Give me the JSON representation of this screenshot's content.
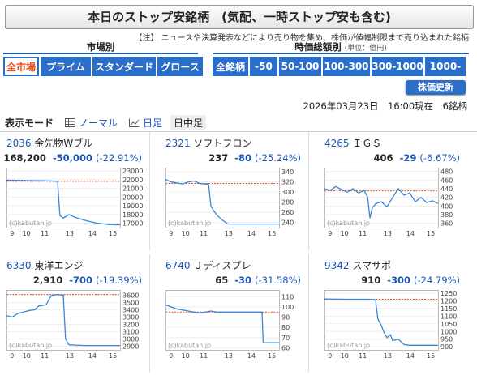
{
  "title": "本日のストップ安銘柄　(気配、一時ストップ安も含む)",
  "note_label": "【注】",
  "note_text": "ニュースや決算発表などにより売り物を集め、株価が値幅制限まで売り込まれた銘柄",
  "market_section": {
    "label": "市場別",
    "tabs": [
      {
        "label": "全市場",
        "active": true
      },
      {
        "label": "プライム",
        "active": false
      },
      {
        "label": "スタンダード",
        "active": false
      },
      {
        "label": "グロース",
        "active": false
      }
    ]
  },
  "price_section": {
    "label": "時価総額別",
    "unit": "(単位：億円)",
    "tabs": [
      {
        "label": "全銘柄"
      },
      {
        "label": "-50"
      },
      {
        "label": "50-100"
      },
      {
        "label": "100-300"
      },
      {
        "label": "300-1000"
      },
      {
        "label": "1000-"
      }
    ]
  },
  "refresh_label": "株価更新",
  "timestamp": "2026年03月23日　16:00現在　6銘柄",
  "mode_bar": {
    "label": "表示モード",
    "modes": [
      {
        "label": "ノーマル",
        "icon": "table-icon",
        "selected": false
      },
      {
        "label": "日足",
        "icon": "line-chart-icon",
        "selected": false
      },
      {
        "label": "日中足",
        "icon": "",
        "selected": true
      }
    ]
  },
  "stocks": [
    {
      "code": "2036",
      "name": "金先物Wブル",
      "price": "168,200",
      "change": "-50,000",
      "pct": "(-22.91%)",
      "yticks": [
        "230000",
        "220000",
        "210000",
        "200000",
        "190000",
        "180000",
        "170000"
      ],
      "ymin": 165000,
      "ymax": 232000,
      "ref": 218200,
      "pts": [
        [
          0,
          219500
        ],
        [
          0.1,
          219300
        ],
        [
          0.2,
          219000
        ],
        [
          0.3,
          218900
        ],
        [
          0.4,
          218500
        ],
        [
          0.45,
          218000
        ],
        [
          0.47,
          179000
        ],
        [
          0.5,
          176000
        ],
        [
          0.55,
          180000
        ],
        [
          0.6,
          177000
        ],
        [
          0.7,
          173000
        ],
        [
          0.8,
          170000
        ],
        [
          0.9,
          168500
        ],
        [
          1,
          168200
        ]
      ]
    },
    {
      "code": "2321",
      "name": "ソフトフロン",
      "price": "237",
      "change": "-80",
      "pct": "(-25.24%)",
      "yticks": [
        "340",
        "320",
        "300",
        "280",
        "260",
        "240"
      ],
      "ymin": 230,
      "ymax": 345,
      "ref": 317,
      "pts": [
        [
          0,
          325
        ],
        [
          0.05,
          320
        ],
        [
          0.1,
          318
        ],
        [
          0.15,
          316
        ],
        [
          0.2,
          320
        ],
        [
          0.25,
          322
        ],
        [
          0.3,
          317
        ],
        [
          0.35,
          316
        ],
        [
          0.38,
          315
        ],
        [
          0.4,
          272
        ],
        [
          0.45,
          255
        ],
        [
          0.5,
          245
        ],
        [
          0.55,
          237
        ],
        [
          0.7,
          237
        ],
        [
          1,
          237
        ]
      ]
    },
    {
      "code": "4265",
      "name": "ＩＧＳ",
      "price": "406",
      "change": "-29",
      "pct": "(-6.67%)",
      "yticks": [
        "480",
        "460",
        "440",
        "420",
        "400",
        "380",
        "360"
      ],
      "ymin": 350,
      "ymax": 485,
      "ref": 435,
      "pts": [
        [
          0,
          440
        ],
        [
          0.05,
          436
        ],
        [
          0.1,
          445
        ],
        [
          0.15,
          438
        ],
        [
          0.2,
          432
        ],
        [
          0.25,
          440
        ],
        [
          0.3,
          430
        ],
        [
          0.35,
          436
        ],
        [
          0.38,
          420
        ],
        [
          0.4,
          372
        ],
        [
          0.42,
          395
        ],
        [
          0.45,
          405
        ],
        [
          0.5,
          410
        ],
        [
          0.55,
          398
        ],
        [
          0.6,
          420
        ],
        [
          0.65,
          440
        ],
        [
          0.7,
          425
        ],
        [
          0.75,
          430
        ],
        [
          0.8,
          410
        ],
        [
          0.85,
          420
        ],
        [
          0.9,
          408
        ],
        [
          0.95,
          412
        ],
        [
          1,
          406
        ]
      ]
    },
    {
      "code": "6330",
      "name": "東洋エンジ",
      "price": "2,910",
      "change": "-700",
      "pct": "(-19.39%)",
      "yticks": [
        "3600",
        "3500",
        "3400",
        "3300",
        "3200",
        "3100",
        "3000",
        "2900"
      ],
      "ymin": 2850,
      "ymax": 3650,
      "ref": 3610,
      "pts": [
        [
          0,
          3320
        ],
        [
          0.05,
          3300
        ],
        [
          0.1,
          3350
        ],
        [
          0.15,
          3370
        ],
        [
          0.2,
          3390
        ],
        [
          0.25,
          3400
        ],
        [
          0.28,
          3450
        ],
        [
          0.32,
          3460
        ],
        [
          0.35,
          3470
        ],
        [
          0.38,
          3560
        ],
        [
          0.4,
          3600
        ],
        [
          0.45,
          3610
        ],
        [
          0.5,
          3600
        ],
        [
          0.52,
          3000
        ],
        [
          0.55,
          2920
        ],
        [
          0.6,
          2915
        ],
        [
          0.7,
          2910
        ],
        [
          1,
          2910
        ]
      ]
    },
    {
      "code": "6740",
      "name": "Ｊディスプレ",
      "price": "65",
      "change": "-30",
      "pct": "(-31.58%)",
      "yticks": [
        "110",
        "100",
        "90",
        "80",
        "70",
        "60"
      ],
      "ymin": 58,
      "ymax": 115,
      "ref": 95,
      "pts": [
        [
          0,
          102
        ],
        [
          0.05,
          100
        ],
        [
          0.1,
          98
        ],
        [
          0.15,
          97
        ],
        [
          0.2,
          96
        ],
        [
          0.25,
          95
        ],
        [
          0.3,
          94
        ],
        [
          0.35,
          95
        ],
        [
          0.4,
          96
        ],
        [
          0.45,
          95
        ],
        [
          0.5,
          95
        ],
        [
          0.8,
          95
        ],
        [
          0.85,
          95
        ],
        [
          0.86,
          65
        ],
        [
          0.9,
          65
        ],
        [
          1,
          65
        ]
      ]
    },
    {
      "code": "9342",
      "name": "スマサポ",
      "price": "910",
      "change": "-300",
      "pct": "(-24.79%)",
      "yticks": [
        "1250",
        "1200",
        "1150",
        "1100",
        "1050",
        "1000",
        "950",
        "900"
      ],
      "ymin": 880,
      "ymax": 1260,
      "ref": 1210,
      "pts": [
        [
          0,
          1212
        ],
        [
          0.2,
          1210
        ],
        [
          0.3,
          1210
        ],
        [
          0.4,
          1210
        ],
        [
          0.45,
          1205
        ],
        [
          0.47,
          1080
        ],
        [
          0.5,
          1040
        ],
        [
          0.52,
          1000
        ],
        [
          0.55,
          960
        ],
        [
          0.58,
          980
        ],
        [
          0.6,
          940
        ],
        [
          0.65,
          950
        ],
        [
          0.7,
          915
        ],
        [
          0.75,
          910
        ],
        [
          1,
          910
        ]
      ]
    }
  ],
  "xticks": [
    "9",
    "10",
    "11",
    "13",
    "14",
    "15"
  ],
  "watermark": "(c)kabutan.jp",
  "colors": {
    "accent": "#2a6ec9",
    "active_tab_text": "#e64a19",
    "line": "#3a86d9",
    "ref_line": "#e64a19",
    "neg": "#1a55b5"
  }
}
